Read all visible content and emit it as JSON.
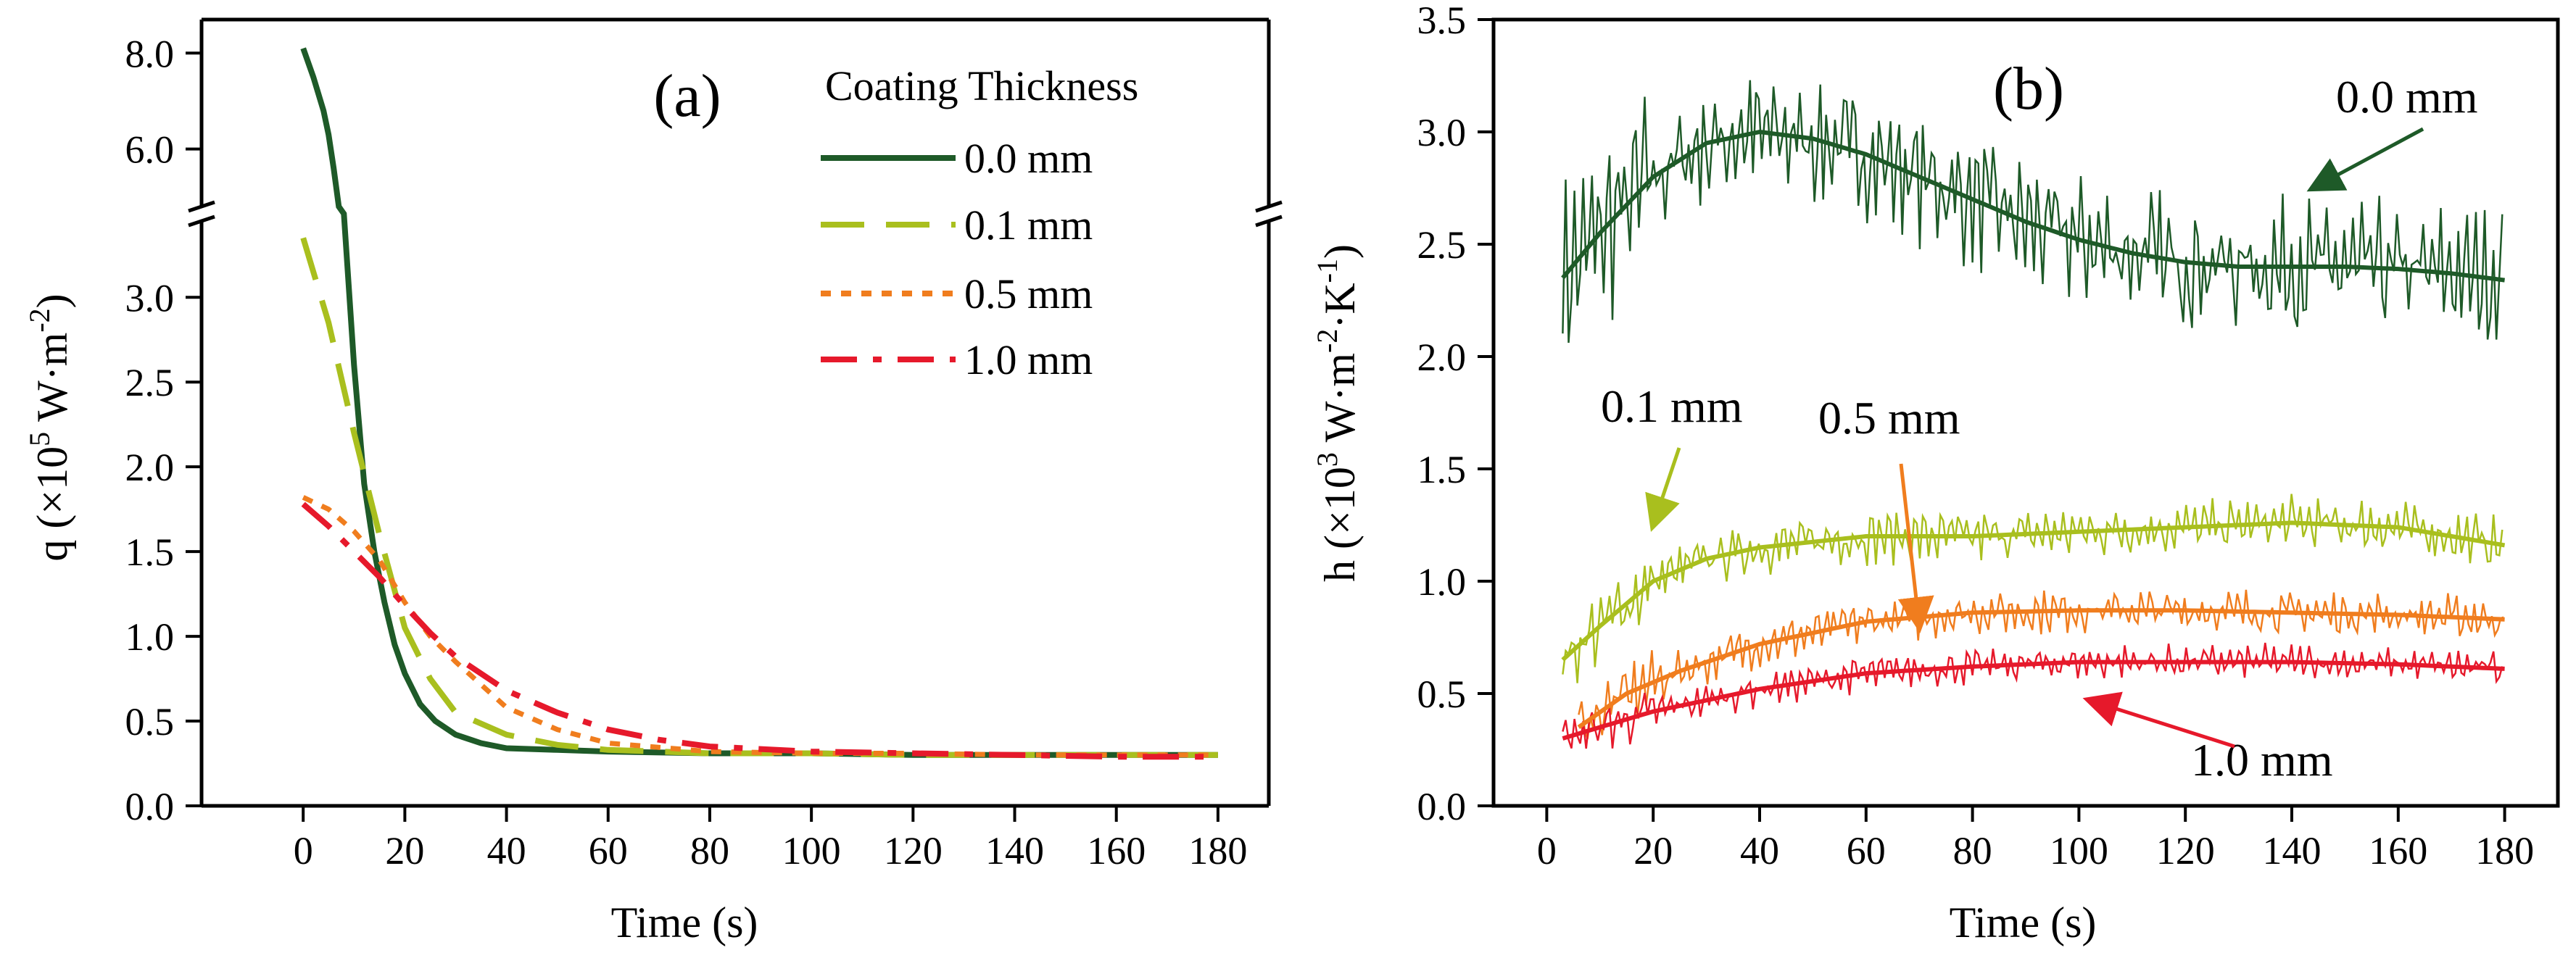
{
  "chart_data": [
    {
      "type": "line",
      "panel_label": "(a)",
      "xlabel": "Time (s)",
      "ylabel_text": "q (×10",
      "ylabel_exp": "5",
      "ylabel_unit": " W·m",
      "ylabel_unit_exp": "-2",
      "xlim": [
        -20,
        190
      ],
      "ylim_lower": [
        0,
        3.45
      ],
      "ylim_upper": [
        4.8,
        8.7
      ],
      "axis_break": true,
      "xticks": [
        0,
        20,
        40,
        60,
        80,
        100,
        120,
        140,
        160,
        180
      ],
      "xtick_labels": [
        "0",
        "20",
        "40",
        "60",
        "80",
        "100",
        "120",
        "140",
        "160",
        "180"
      ],
      "yticks_lower": [
        0,
        0.5,
        1.0,
        1.5,
        2.0,
        2.5,
        3.0
      ],
      "yticks_lower_labels": [
        "0.0",
        "0.5",
        "1.0",
        "1.5",
        "2.0",
        "2.5",
        "3.0"
      ],
      "yticks_upper": [
        6.0,
        8.0
      ],
      "yticks_upper_labels": [
        "6.0",
        "8.0"
      ],
      "legend_title": "Coating Thickness",
      "legend_position": "top-right",
      "series": [
        {
          "name": "0.0 mm",
          "color": "#1e5a28",
          "dash": "solid",
          "x": [
            0,
            2,
            4,
            5,
            6,
            7,
            8,
            10,
            12,
            14,
            16,
            18,
            20,
            23,
            26,
            30,
            35,
            40,
            50,
            60,
            80,
            100,
            120,
            140,
            160,
            180
          ],
          "y": [
            8.1,
            7.5,
            6.8,
            6.3,
            5.6,
            4.8,
            3.5,
            2.6,
            1.9,
            1.5,
            1.2,
            0.95,
            0.78,
            0.6,
            0.5,
            0.42,
            0.37,
            0.34,
            0.33,
            0.32,
            0.31,
            0.31,
            0.3,
            0.3,
            0.3,
            0.3
          ]
        },
        {
          "name": "0.1 mm",
          "color": "#a9bf1e",
          "dash": "dashed",
          "x": [
            0,
            5,
            10,
            15,
            20,
            25,
            30,
            40,
            50,
            60,
            80,
            100,
            120,
            140,
            160,
            180
          ],
          "y": [
            3.35,
            2.85,
            2.2,
            1.6,
            1.05,
            0.75,
            0.55,
            0.42,
            0.36,
            0.33,
            0.31,
            0.31,
            0.3,
            0.3,
            0.3,
            0.3
          ]
        },
        {
          "name": "0.5 mm",
          "color": "#f07d1e",
          "dash": "dotted",
          "x": [
            0,
            5,
            10,
            15,
            20,
            25,
            30,
            40,
            50,
            60,
            80,
            100,
            120,
            140,
            160,
            180
          ],
          "y": [
            1.82,
            1.75,
            1.62,
            1.45,
            1.2,
            1.0,
            0.85,
            0.58,
            0.45,
            0.37,
            0.32,
            0.31,
            0.31,
            0.3,
            0.3,
            0.3
          ]
        },
        {
          "name": "1.0 mm",
          "color": "#e6192b",
          "dash": "dashdot",
          "x": [
            0,
            5,
            10,
            15,
            20,
            25,
            30,
            40,
            50,
            60,
            70,
            80,
            100,
            120,
            140,
            160,
            180
          ],
          "y": [
            1.78,
            1.65,
            1.5,
            1.35,
            1.18,
            1.02,
            0.88,
            0.68,
            0.55,
            0.45,
            0.39,
            0.35,
            0.32,
            0.31,
            0.3,
            0.29,
            0.29
          ]
        }
      ]
    },
    {
      "type": "line",
      "panel_label": "(b)",
      "xlabel": "Time (s)",
      "ylabel_text": "h (×10",
      "ylabel_exp": "3",
      "ylabel_unit": " W·m",
      "ylabel_unit_exp": "-2",
      "ylabel_unit2": "·K",
      "ylabel_unit2_exp": "-1",
      "ylabel_close": ")",
      "xlim": [
        -10,
        190
      ],
      "ylim": [
        0,
        3.5
      ],
      "xticks": [
        0,
        20,
        40,
        60,
        80,
        100,
        120,
        140,
        160,
        180
      ],
      "xtick_labels": [
        "0",
        "20",
        "40",
        "60",
        "80",
        "100",
        "120",
        "140",
        "160",
        "180"
      ],
      "yticks": [
        0,
        0.5,
        1.0,
        1.5,
        2.0,
        2.5,
        3.0,
        3.5
      ],
      "ytick_labels": [
        "0.0",
        "0.5",
        "1.0",
        "1.5",
        "2.0",
        "2.5",
        "3.0",
        "3.5"
      ],
      "series": [
        {
          "name": "0.0 mm",
          "color": "#1e5a28",
          "fit_x": [
            3,
            10,
            20,
            30,
            40,
            50,
            60,
            70,
            80,
            90,
            100,
            110,
            120,
            130,
            140,
            150,
            160,
            170,
            180
          ],
          "fit_y": [
            2.35,
            2.55,
            2.8,
            2.95,
            3.0,
            2.97,
            2.9,
            2.8,
            2.7,
            2.6,
            2.52,
            2.46,
            2.42,
            2.4,
            2.4,
            2.4,
            2.39,
            2.37,
            2.34
          ],
          "noise_amplitude": 0.3
        },
        {
          "name": "0.1 mm",
          "color": "#a9bf1e",
          "fit_x": [
            3,
            10,
            20,
            30,
            40,
            60,
            80,
            100,
            120,
            140,
            160,
            180
          ],
          "fit_y": [
            0.65,
            0.8,
            1.0,
            1.1,
            1.15,
            1.2,
            1.2,
            1.22,
            1.24,
            1.26,
            1.24,
            1.16
          ],
          "noise_amplitude": 0.12
        },
        {
          "name": "0.5 mm",
          "color": "#f07d1e",
          "fit_x": [
            6,
            15,
            25,
            40,
            60,
            80,
            100,
            120,
            140,
            160,
            180
          ],
          "fit_y": [
            0.35,
            0.5,
            0.6,
            0.72,
            0.82,
            0.86,
            0.87,
            0.87,
            0.86,
            0.85,
            0.83
          ],
          "noise_amplitude": 0.1
        },
        {
          "name": "1.0 mm",
          "color": "#e6192b",
          "fit_x": [
            3,
            10,
            20,
            40,
            60,
            80,
            100,
            120,
            140,
            160,
            180
          ],
          "fit_y": [
            0.3,
            0.35,
            0.42,
            0.52,
            0.59,
            0.62,
            0.64,
            0.64,
            0.64,
            0.63,
            0.61
          ],
          "noise_amplitude": 0.08
        }
      ],
      "annotations": [
        {
          "text": "0.0 mm",
          "series": "0.0 mm",
          "color": "#1e5a28",
          "arrow_to": [
            144,
            2.75
          ]
        },
        {
          "text": "0.1 mm",
          "series": "0.1 mm",
          "color": "#a9bf1e",
          "arrow_to": [
            20,
            1.25
          ]
        },
        {
          "text": "0.5 mm",
          "series": "0.5 mm",
          "color": "#f07d1e",
          "arrow_to": [
            70,
            0.8
          ]
        },
        {
          "text": "1.0 mm",
          "series": "1.0 mm",
          "color": "#e6192b",
          "arrow_to": [
            102,
            0.47
          ]
        }
      ]
    }
  ]
}
